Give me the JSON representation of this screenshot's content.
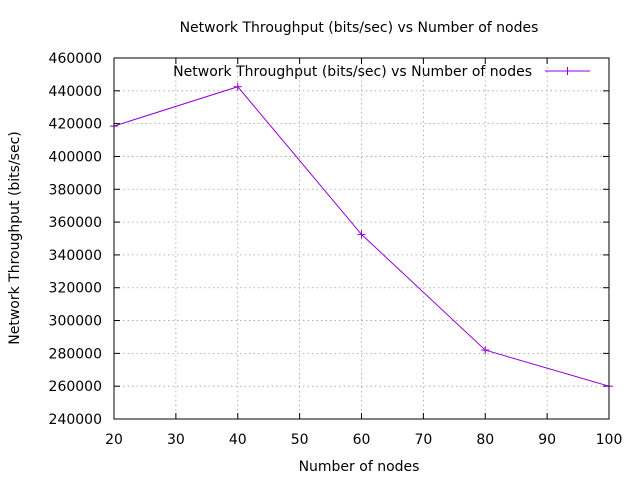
{
  "chart_data": {
    "type": "line",
    "title": "Network Throughput (bits/sec) vs Number of nodes",
    "xlabel": "Number of nodes",
    "ylabel": "Network Throughput (bits/sec)",
    "xlim": [
      20,
      100
    ],
    "ylim": [
      240000,
      460000
    ],
    "xticks": [
      20,
      30,
      40,
      50,
      60,
      70,
      80,
      90,
      100
    ],
    "yticks": [
      240000,
      260000,
      280000,
      300000,
      320000,
      340000,
      360000,
      380000,
      400000,
      420000,
      440000,
      460000
    ],
    "grid": true,
    "legend_position": "top-right",
    "series": [
      {
        "name": "Network Throughput (bits/sec) vs Number of nodes",
        "color": "#9400d3",
        "marker": "plus",
        "x": [
          20,
          40,
          60,
          80,
          100
        ],
        "y": [
          418500,
          442500,
          352500,
          282000,
          260000
        ]
      }
    ]
  }
}
